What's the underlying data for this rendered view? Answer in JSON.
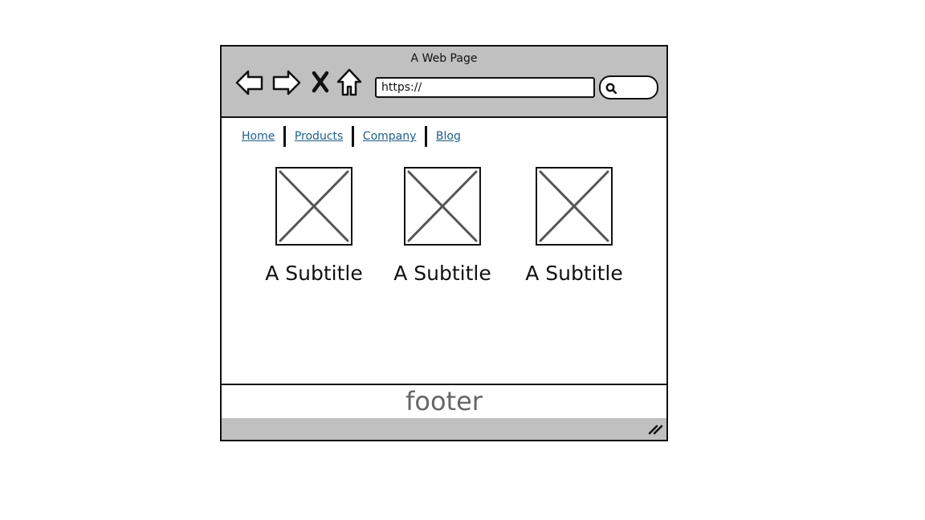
{
  "window": {
    "title": "A Web Page"
  },
  "toolbar": {
    "back_icon": "arrow-left-icon",
    "forward_icon": "arrow-right-icon",
    "stop_icon": "close-icon",
    "home_icon": "home-icon",
    "url_value": "https://",
    "search_icon": "search-icon"
  },
  "nav": {
    "links": [
      "Home",
      "Products",
      "Company",
      "Blog"
    ]
  },
  "cards": [
    {
      "image_icon": "image-placeholder-icon",
      "subtitle": "A Subtitle"
    },
    {
      "image_icon": "image-placeholder-icon",
      "subtitle": "A Subtitle"
    },
    {
      "image_icon": "image-placeholder-icon",
      "subtitle": "A Subtitle"
    }
  ],
  "footer": {
    "label": "footer"
  },
  "status_bar": {
    "resize_icon": "resize-grip-icon"
  },
  "colors": {
    "chrome": "#c0c0c0",
    "link": "#1f5e8c",
    "stroke": "#111111",
    "footer_text": "#666666"
  }
}
